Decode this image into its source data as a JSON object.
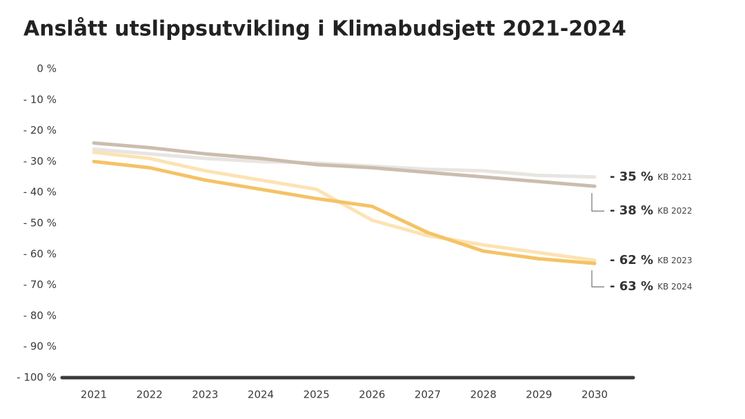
{
  "chart_data": {
    "type": "line",
    "title": "Anslått utslippsutvikling i Klimabudsjett 2021-2024",
    "categories": [
      "2021",
      "2022",
      "2023",
      "2024",
      "2025",
      "2026",
      "2027",
      "2028",
      "2029",
      "2030"
    ],
    "ylim": [
      -100,
      0
    ],
    "yticks": [
      {
        "value": 0,
        "label": "0 %"
      },
      {
        "value": -10,
        "label": "- 10 %"
      },
      {
        "value": -20,
        "label": "- 20 %"
      },
      {
        "value": -30,
        "label": "- 30 %"
      },
      {
        "value": -40,
        "label": "- 40 %"
      },
      {
        "value": -50,
        "label": "- 50 %"
      },
      {
        "value": -60,
        "label": "- 60 %"
      },
      {
        "value": -70,
        "label": "- 70 %"
      },
      {
        "value": -80,
        "label": "- 80 %"
      },
      {
        "value": -90,
        "label": "- 90 %"
      },
      {
        "value": -100,
        "label": "- 100 %"
      }
    ],
    "series": [
      {
        "name": "KB 2021",
        "color": "#e8e5e1",
        "values": [
          -26,
          -27.5,
          -29,
          -30,
          -30.5,
          -31.5,
          -32.5,
          -33,
          -34.5,
          -35
        ],
        "value_labels": [
          null,
          null,
          null,
          null,
          null,
          null,
          null,
          null,
          null,
          "- 35 %"
        ]
      },
      {
        "name": "KB 2022",
        "color": "#cbbdae",
        "values": [
          -24,
          -25.5,
          -27.5,
          -29,
          -31,
          -32,
          -33.5,
          -35,
          -36.5,
          -38
        ],
        "value_labels": [
          null,
          null,
          null,
          null,
          null,
          null,
          null,
          null,
          null,
          "- 38 %"
        ]
      },
      {
        "name": "KB 2023",
        "color": "#fce3b3",
        "values": [
          -27,
          -29,
          -33,
          -36,
          -39,
          -49,
          -54,
          -57,
          -59.5,
          -62
        ],
        "value_labels": [
          null,
          null,
          null,
          null,
          null,
          null,
          null,
          null,
          null,
          "- 62 %"
        ]
      },
      {
        "name": "KB 2024",
        "color": "#f5c266",
        "values": [
          -30,
          -32,
          -36,
          -39,
          -42,
          -44.5,
          -53,
          -59,
          -61.5,
          -63
        ],
        "value_labels": [
          null,
          null,
          null,
          null,
          null,
          null,
          null,
          null,
          null,
          "- 63 %"
        ]
      }
    ]
  }
}
